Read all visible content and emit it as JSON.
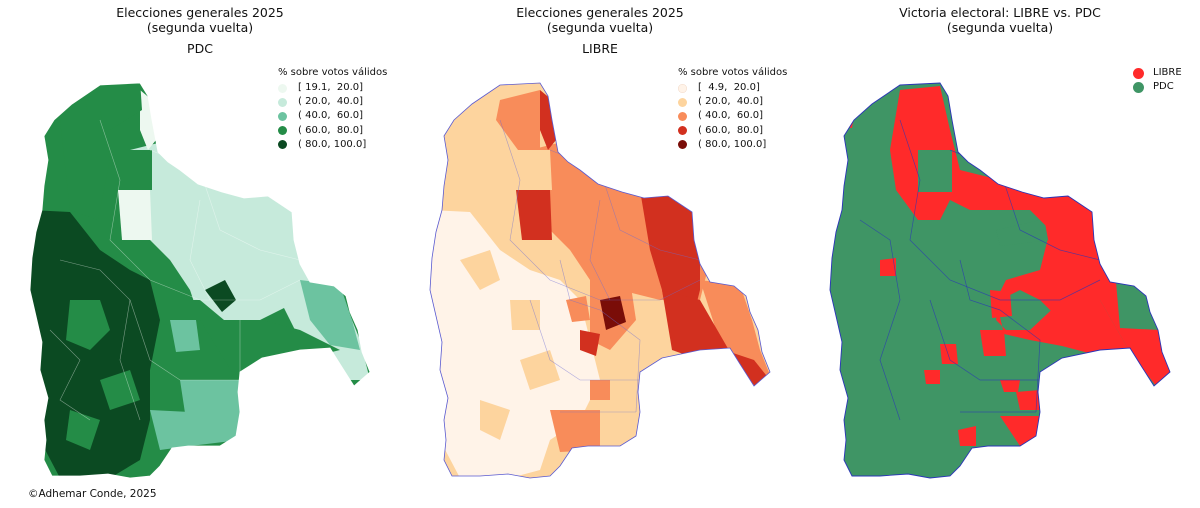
{
  "panels": [
    {
      "title": "Elecciones generales 2025",
      "subtitle_paren": "(segunda vuelta)",
      "party_label": "PDC",
      "legend": {
        "title": "% sobre votos válidos",
        "items": [
          {
            "label": "[ 19.1,  20.0]",
            "color": "#edf8f0"
          },
          {
            "label": "( 20.0,  40.0]",
            "color": "#c6eadb"
          },
          {
            "label": "( 40.0,  60.0]",
            "color": "#6cc3a0"
          },
          {
            "label": "( 60.0,  80.0]",
            "color": "#248c47"
          },
          {
            "label": "( 80.0, 100.0]",
            "color": "#0b4a22"
          }
        ]
      }
    },
    {
      "title": "Elecciones generales 2025",
      "subtitle_paren": "(segunda vuelta)",
      "party_label": "LIBRE",
      "legend": {
        "title": "% sobre votos válidos",
        "items": [
          {
            "label": "[  4.9,  20.0]",
            "color": "#fff3e8"
          },
          {
            "label": "( 20.0,  40.0]",
            "color": "#fdd49e"
          },
          {
            "label": "( 40.0,  60.0]",
            "color": "#f88c5a"
          },
          {
            "label": "( 60.0,  80.0]",
            "color": "#d2301f"
          },
          {
            "label": "( 80.0, 100.0]",
            "color": "#7a0d08"
          }
        ]
      }
    },
    {
      "title": "Victoria electoral: LIBRE vs. PDC",
      "subtitle_paren": "(segunda vuelta)",
      "legend": {
        "items": [
          {
            "label": "LIBRE",
            "color": "#ff2a2a"
          },
          {
            "label": "PDC",
            "color": "#3f9565"
          }
        ]
      }
    }
  ],
  "credit": "©Adhemar Conde, 2025"
}
